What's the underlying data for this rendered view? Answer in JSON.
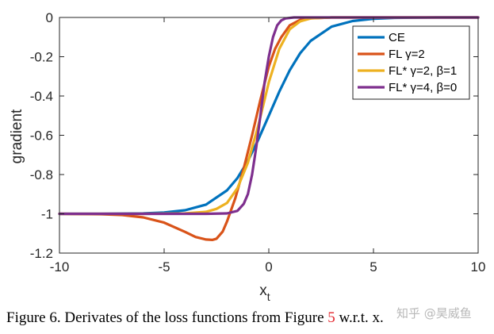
{
  "chart_data": {
    "type": "line",
    "xlabel": "x",
    "xlabel_subscript": "t",
    "ylabel": "gradient",
    "xlim": [
      -10,
      10
    ],
    "ylim": [
      -1.2,
      0
    ],
    "xticks": [
      -10,
      -5,
      0,
      5,
      10
    ],
    "yticks": [
      0,
      -0.2,
      -0.4,
      -0.6,
      -0.8,
      -1,
      -1.2
    ],
    "xtick_labels": [
      "-10",
      "-5",
      "0",
      "5",
      "10"
    ],
    "ytick_labels": [
      "0",
      "-0.2",
      "-0.4",
      "-0.6",
      "-0.8",
      "-1",
      "-1.2"
    ],
    "grid": false,
    "legend_position": "top-right",
    "series": [
      {
        "name": "CE",
        "color": "#0072BD",
        "points": [
          [
            -10,
            -1.0
          ],
          [
            -8,
            -1.0
          ],
          [
            -6,
            -0.998
          ],
          [
            -5,
            -0.993
          ],
          [
            -4,
            -0.982
          ],
          [
            -3,
            -0.953
          ],
          [
            -2,
            -0.881
          ],
          [
            -1.5,
            -0.818
          ],
          [
            -1,
            -0.731
          ],
          [
            -0.5,
            -0.622
          ],
          [
            0,
            -0.5
          ],
          [
            0.5,
            -0.378
          ],
          [
            1,
            -0.269
          ],
          [
            1.5,
            -0.182
          ],
          [
            2,
            -0.119
          ],
          [
            3,
            -0.047
          ],
          [
            4,
            -0.018
          ],
          [
            5,
            -0.007
          ],
          [
            6,
            -0.002
          ],
          [
            8,
            0.0
          ],
          [
            10,
            0.0
          ]
        ]
      },
      {
        "name": "FL γ=2",
        "color": "#D95319",
        "points": [
          [
            -10,
            -1.0
          ],
          [
            -8,
            -1.002
          ],
          [
            -7,
            -1.006
          ],
          [
            -6,
            -1.018
          ],
          [
            -5,
            -1.045
          ],
          [
            -4,
            -1.092
          ],
          [
            -3.5,
            -1.118
          ],
          [
            -3,
            -1.131
          ],
          [
            -2.7,
            -1.133
          ],
          [
            -2.5,
            -1.127
          ],
          [
            -2.2,
            -1.09
          ],
          [
            -2,
            -1.04
          ],
          [
            -1.6,
            -0.92
          ],
          [
            -1.2,
            -0.77
          ],
          [
            -0.8,
            -0.6
          ],
          [
            -0.4,
            -0.42
          ],
          [
            0,
            -0.25
          ],
          [
            0.3,
            -0.16
          ],
          [
            0.6,
            -0.1
          ],
          [
            1,
            -0.04
          ],
          [
            1.5,
            -0.012
          ],
          [
            2,
            -0.004
          ],
          [
            3,
            0.0
          ],
          [
            10,
            0.0
          ]
        ]
      },
      {
        "name": "FL* γ=2, β=1",
        "color": "#EDB120",
        "points": [
          [
            -10,
            -1.0
          ],
          [
            -6,
            -1.0
          ],
          [
            -4,
            -0.998
          ],
          [
            -3,
            -0.99
          ],
          [
            -2.5,
            -0.975
          ],
          [
            -2,
            -0.945
          ],
          [
            -1.5,
            -0.87
          ],
          [
            -1,
            -0.74
          ],
          [
            -0.5,
            -0.55
          ],
          [
            0,
            -0.33
          ],
          [
            0.5,
            -0.16
          ],
          [
            1,
            -0.06
          ],
          [
            1.5,
            -0.02
          ],
          [
            2,
            -0.005
          ],
          [
            3,
            0.0
          ],
          [
            10,
            0.0
          ]
        ]
      },
      {
        "name": "FL* γ=4, β=0",
        "color": "#7E2F8E",
        "points": [
          [
            -10,
            -1.0
          ],
          [
            -3,
            -1.0
          ],
          [
            -2,
            -0.998
          ],
          [
            -1.5,
            -0.985
          ],
          [
            -1.2,
            -0.95
          ],
          [
            -1,
            -0.9
          ],
          [
            -0.8,
            -0.8
          ],
          [
            -0.6,
            -0.66
          ],
          [
            -0.4,
            -0.5
          ],
          [
            -0.2,
            -0.33
          ],
          [
            0,
            -0.2
          ],
          [
            0.2,
            -0.1
          ],
          [
            0.4,
            -0.04
          ],
          [
            0.6,
            -0.015
          ],
          [
            0.8,
            -0.005
          ],
          [
            1.2,
            0.0
          ],
          [
            10,
            0.0
          ]
        ]
      }
    ]
  },
  "legend": {
    "items": [
      {
        "prefix": "CE",
        "gamma": "",
        "beta": ""
      },
      {
        "prefix": "FL ",
        "gamma": "γ=2",
        "beta": ""
      },
      {
        "prefix": "FL* ",
        "gamma": "γ=2, ",
        "beta": "β=1"
      },
      {
        "prefix": "FL* ",
        "gamma": "γ=4, ",
        "beta": "β=0"
      }
    ]
  },
  "caption": {
    "before": "Figure 6. Derivates of the loss functions from Figure ",
    "ref": "5",
    "after": " w.r.t. x."
  },
  "watermark": "知乎 @昊威鱼"
}
